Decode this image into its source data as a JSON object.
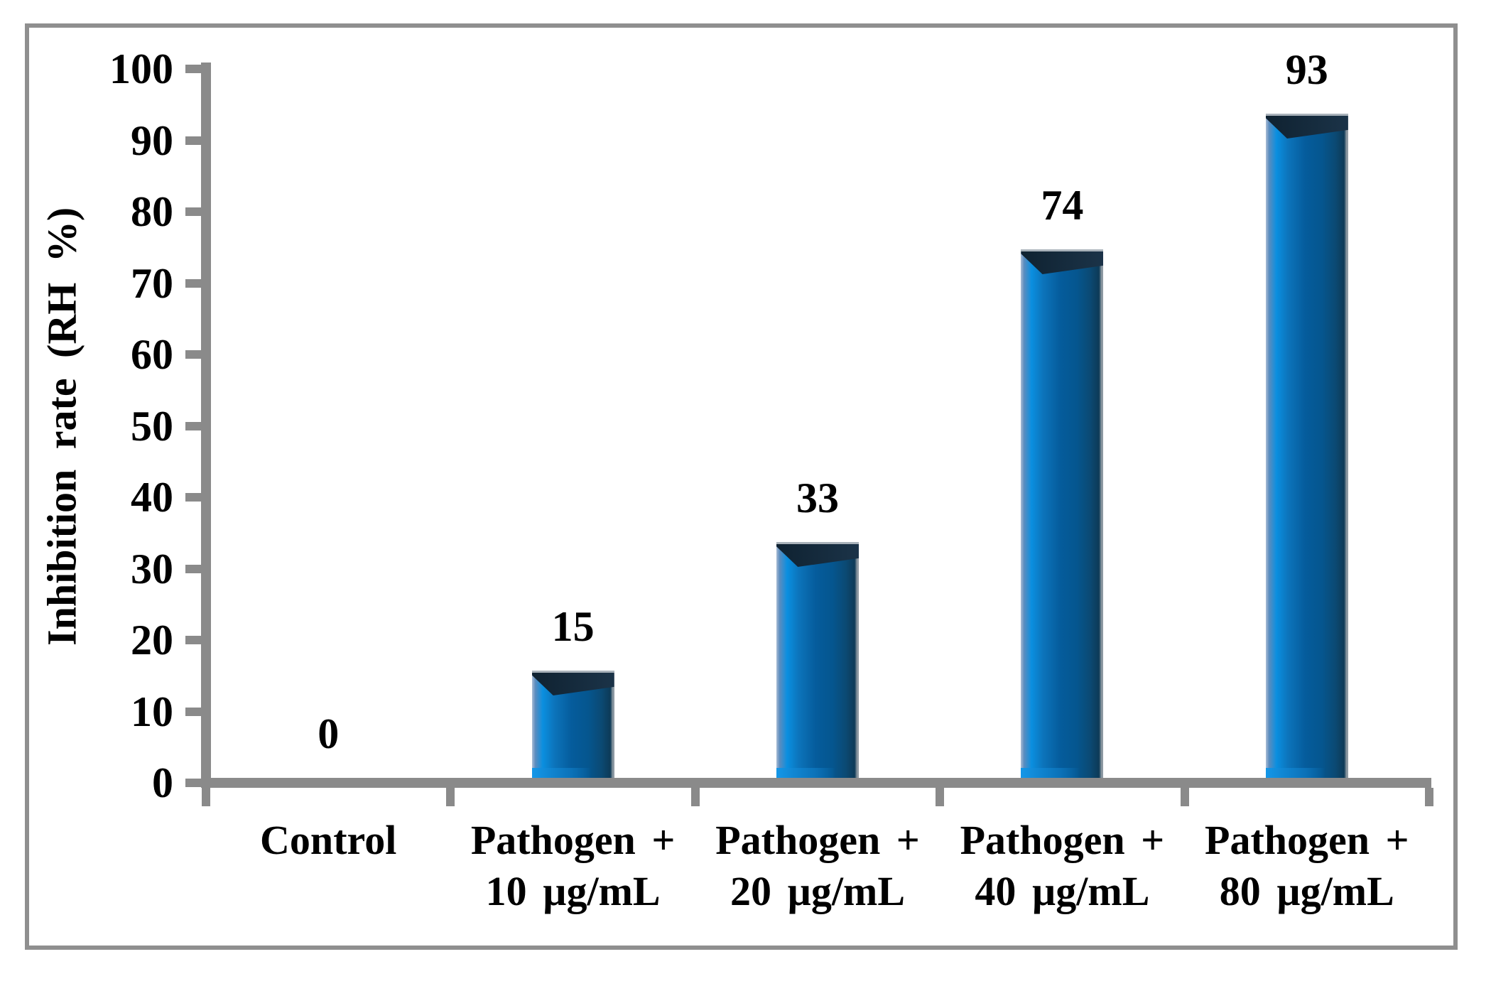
{
  "chart_data": {
    "type": "bar",
    "title": "",
    "categories": [
      {
        "lines": [
          "Control"
        ]
      },
      {
        "lines": [
          "Pathogen +",
          "10 µg/mL"
        ]
      },
      {
        "lines": [
          "Pathogen +",
          "20 µg/mL"
        ]
      },
      {
        "lines": [
          "Pathogen +",
          "40 µg/mL"
        ]
      },
      {
        "lines": [
          "Pathogen +",
          "80 µg/mL"
        ]
      }
    ],
    "values": [
      0,
      15,
      33,
      74,
      93
    ],
    "bar_labels": [
      "0",
      "15",
      "33",
      "74",
      "93"
    ],
    "xlabel": "",
    "ylabel": "Inhibition rate (RH %)",
    "ylim": [
      0,
      100
    ],
    "yticks": [
      0,
      10,
      20,
      30,
      40,
      50,
      60,
      70,
      80,
      90,
      100
    ],
    "grid": false,
    "legend": "none",
    "colors": {
      "background": "#ffffff",
      "text": "#000000",
      "axis": "#8a8a8a",
      "frame_border": "#8f8f8f",
      "bar_edge_left": "#a9bcd4",
      "bar_highlight_edge": "#5b8cbe",
      "bar_highlight": "#0a8fe0",
      "bar_mid": "#0c74bb",
      "bar_body": "#055c9c",
      "bar_body_dark": "#05568f",
      "bar_shade": "#0b4a74",
      "bar_dark_right": "#0d3a57",
      "bar_right_edge": "#8d99a2",
      "bar_top_bevel": "#0f2231",
      "bar_top_edge": "#a9b2ba",
      "bar_bottom_highlight": "#1497e8"
    }
  }
}
